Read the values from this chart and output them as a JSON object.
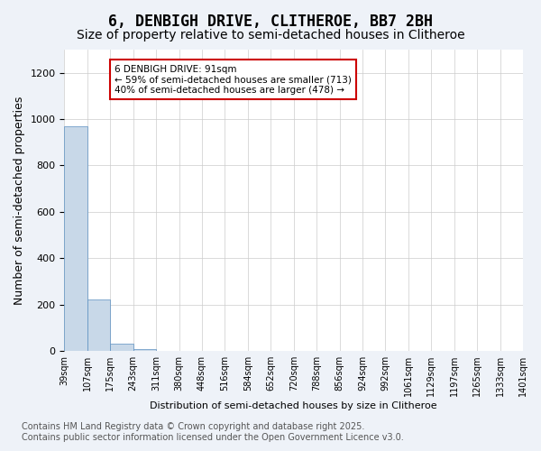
{
  "title": "6, DENBIGH DRIVE, CLITHEROE, BB7 2BH",
  "subtitle": "Size of property relative to semi-detached houses in Clitheroe",
  "xlabel": "Distribution of semi-detached houses by size in Clitheroe",
  "ylabel": "Number of semi-detached properties",
  "footer_line1": "Contains HM Land Registry data © Crown copyright and database right 2025.",
  "footer_line2": "Contains public sector information licensed under the Open Government Licence v3.0.",
  "bin_labels": [
    "39sqm",
    "107sqm",
    "175sqm",
    "243sqm",
    "311sqm",
    "380sqm",
    "448sqm",
    "516sqm",
    "584sqm",
    "652sqm",
    "720sqm",
    "788sqm",
    "856sqm",
    "924sqm",
    "992sqm",
    "1061sqm",
    "1129sqm",
    "1197sqm",
    "1265sqm",
    "1333sqm",
    "1401sqm"
  ],
  "bar_values": [
    970,
    222,
    30,
    10,
    0,
    0,
    0,
    0,
    0,
    0,
    0,
    0,
    0,
    0,
    0,
    0,
    0,
    0,
    0,
    0
  ],
  "bar_color": "#c8d8e8",
  "bar_edge_color": "#5a8fc0",
  "annotation_text": "6 DENBIGH DRIVE: 91sqm\n← 59% of semi-detached houses are smaller (713)\n40% of semi-detached houses are larger (478) →",
  "annotation_box_color": "#ffffff",
  "annotation_box_edge_color": "#cc0000",
  "ylim": [
    0,
    1300
  ],
  "yticks": [
    0,
    200,
    400,
    600,
    800,
    1000,
    1200
  ],
  "bg_color": "#eef2f8",
  "plot_bg_color": "#ffffff",
  "grid_color": "#cccccc",
  "title_fontsize": 12,
  "subtitle_fontsize": 10,
  "tick_fontsize": 7,
  "label_fontsize": 9,
  "footer_fontsize": 7
}
